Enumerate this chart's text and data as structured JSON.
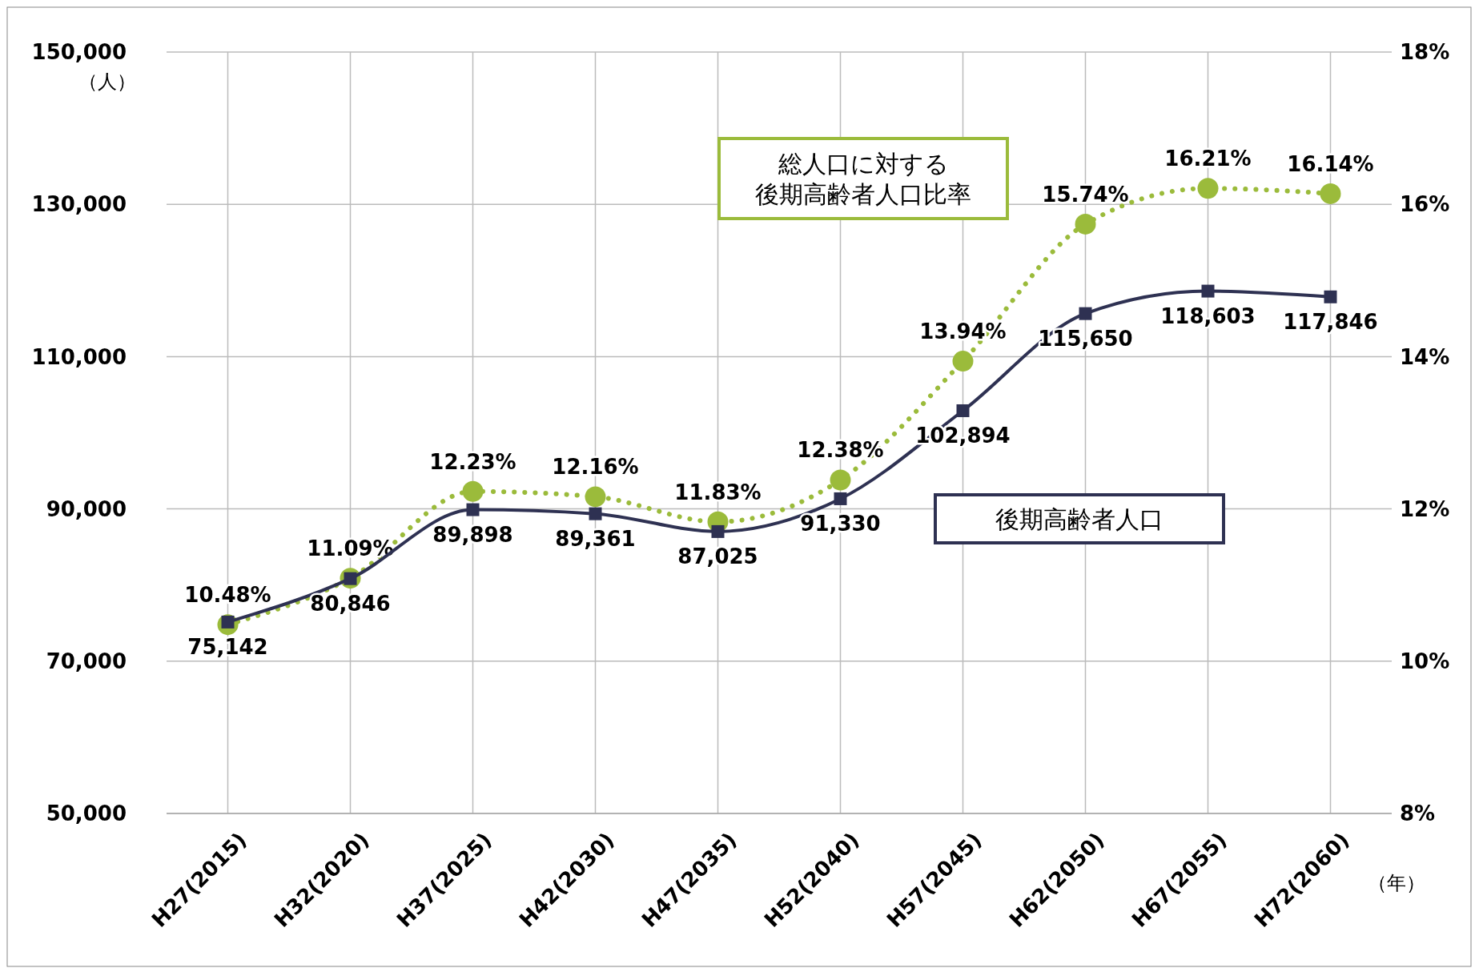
{
  "chart_data": {
    "type": "line",
    "xlabel": "（年）",
    "ylabel": "（人）",
    "categories": [
      "H27(2015)",
      "H32(2020)",
      "H37(2025)",
      "H42(2030)",
      "H47(2035)",
      "H52(2040)",
      "H57(2045)",
      "H62(2050)",
      "H67(2055)",
      "H72(2060)"
    ],
    "series": [
      {
        "name": "後期高齢者人口",
        "color": "#2e3152",
        "marker": "square",
        "line_style": "solid",
        "values": [
          75142,
          80846,
          89898,
          89361,
          87025,
          91330,
          102894,
          115650,
          118603,
          117846
        ],
        "value_labels": [
          "75,142",
          "80,846",
          "89,898",
          "89,361",
          "87,025",
          "91,330",
          "102,894",
          "115,650",
          "118,603",
          "117,846"
        ]
      },
      {
        "name": "総人口に対する後期高齢者人口比率",
        "color": "#9bbb3b",
        "marker": "circle",
        "line_style": "dotted",
        "axis": "y2",
        "values": [
          10.48,
          11.09,
          12.23,
          12.16,
          11.83,
          12.38,
          13.94,
          15.74,
          16.21,
          16.14
        ],
        "value_labels": [
          "10.48%",
          "11.09%",
          "12.23%",
          "12.16%",
          "11.83%",
          "12.38%",
          "13.94%",
          "15.74%",
          "16.21%",
          "16.14%"
        ]
      }
    ],
    "ylim": [
      50000,
      150000
    ],
    "yticks": [
      {
        "value": 50000,
        "label": "50,000"
      },
      {
        "value": 70000,
        "label": "70,000"
      },
      {
        "value": 90000,
        "label": "90,000"
      },
      {
        "value": 110000,
        "label": "110,000"
      },
      {
        "value": 130000,
        "label": "130,000"
      },
      {
        "value": 150000,
        "label": "150,000"
      }
    ],
    "y2lim": [
      8,
      18
    ],
    "y2ticks": [
      {
        "value": 8,
        "label": "8%"
      },
      {
        "value": 10,
        "label": "10%"
      },
      {
        "value": 12,
        "label": "12%"
      },
      {
        "value": 14,
        "label": "14%"
      },
      {
        "value": 16,
        "label": "16%"
      },
      {
        "value": 18,
        "label": "18%"
      }
    ],
    "grid": true
  }
}
